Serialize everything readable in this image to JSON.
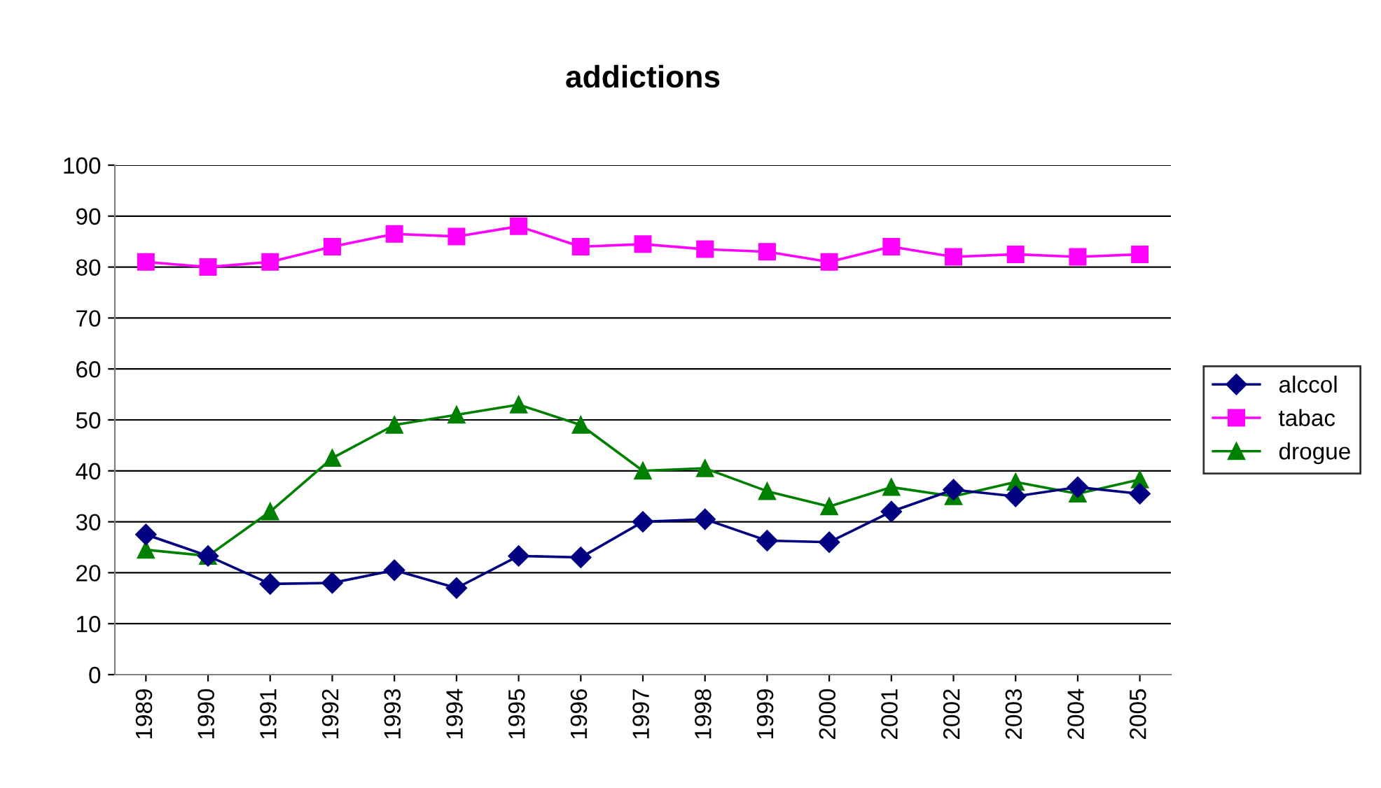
{
  "chart_data": {
    "type": "line",
    "title": "addictions",
    "categories": [
      "1989",
      "1990",
      "1991",
      "1992",
      "1993",
      "1994",
      "1995",
      "1996",
      "1997",
      "1998",
      "1999",
      "2000",
      "2001",
      "2002",
      "2003",
      "2004",
      "2005"
    ],
    "series": [
      {
        "name": "alccol",
        "color": "#000080",
        "marker": "diamond",
        "values": [
          27.5,
          23.3,
          17.8,
          18,
          20.5,
          17,
          23.3,
          23,
          30,
          30.5,
          26.3,
          26,
          32,
          36.3,
          35,
          36.8,
          35.5
        ]
      },
      {
        "name": "tabac",
        "color": "#ff00ff",
        "marker": "square",
        "values": [
          81,
          80,
          81,
          84,
          86.5,
          86,
          88,
          84,
          84.5,
          83.5,
          83,
          81,
          84,
          82,
          82.5,
          82,
          82.5
        ]
      },
      {
        "name": "drogue",
        "color": "#008000",
        "marker": "triangle",
        "values": [
          24.5,
          23.3,
          32,
          42.5,
          49,
          51,
          53,
          49,
          40,
          40.5,
          36,
          33,
          36.8,
          35,
          37.8,
          35.5,
          38.3
        ]
      }
    ],
    "ylim": [
      0,
      100
    ],
    "yticks": [
      0,
      10,
      20,
      30,
      40,
      50,
      60,
      70,
      80,
      90,
      100
    ],
    "grid": "y",
    "legend": "right",
    "line_style": "solid"
  }
}
